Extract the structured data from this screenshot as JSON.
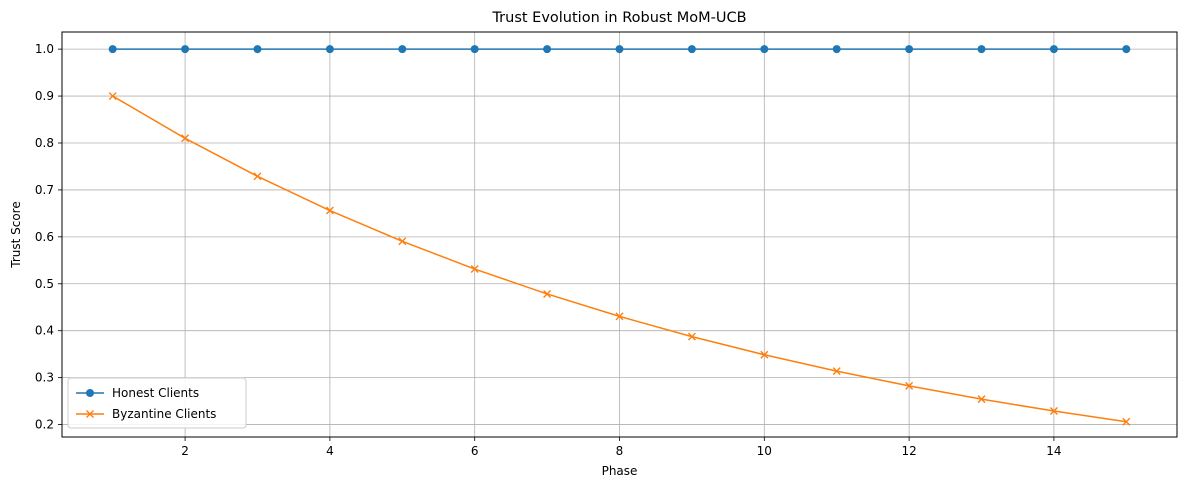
{
  "chart_data": {
    "type": "line",
    "title": "Trust Evolution in Robust MoM-UCB",
    "xlabel": "Phase",
    "ylabel": "Trust Score",
    "x": [
      1,
      2,
      3,
      4,
      5,
      6,
      7,
      8,
      9,
      10,
      11,
      12,
      13,
      14,
      15
    ],
    "xlim": [
      0.3,
      15.7
    ],
    "ylim": [
      0.1735,
      1.0365
    ],
    "xticks": [
      2,
      4,
      6,
      8,
      10,
      12,
      14
    ],
    "yticks": [
      0.2,
      0.3,
      0.4,
      0.5,
      0.6,
      0.7,
      0.8,
      0.9,
      1.0
    ],
    "grid": true,
    "legend_position": "lower-left",
    "series": [
      {
        "name": "Honest Clients",
        "color": "#1f77b4",
        "marker": "circle",
        "values": [
          1.0,
          1.0,
          1.0,
          1.0,
          1.0,
          1.0,
          1.0,
          1.0,
          1.0,
          1.0,
          1.0,
          1.0,
          1.0,
          1.0,
          1.0
        ]
      },
      {
        "name": "Byzantine Clients",
        "color": "#ff7f0e",
        "marker": "x",
        "values": [
          0.9,
          0.81,
          0.729,
          0.6561,
          0.5905,
          0.5314,
          0.4783,
          0.4305,
          0.3874,
          0.3487,
          0.3138,
          0.2824,
          0.2542,
          0.2288,
          0.2059
        ]
      }
    ]
  }
}
